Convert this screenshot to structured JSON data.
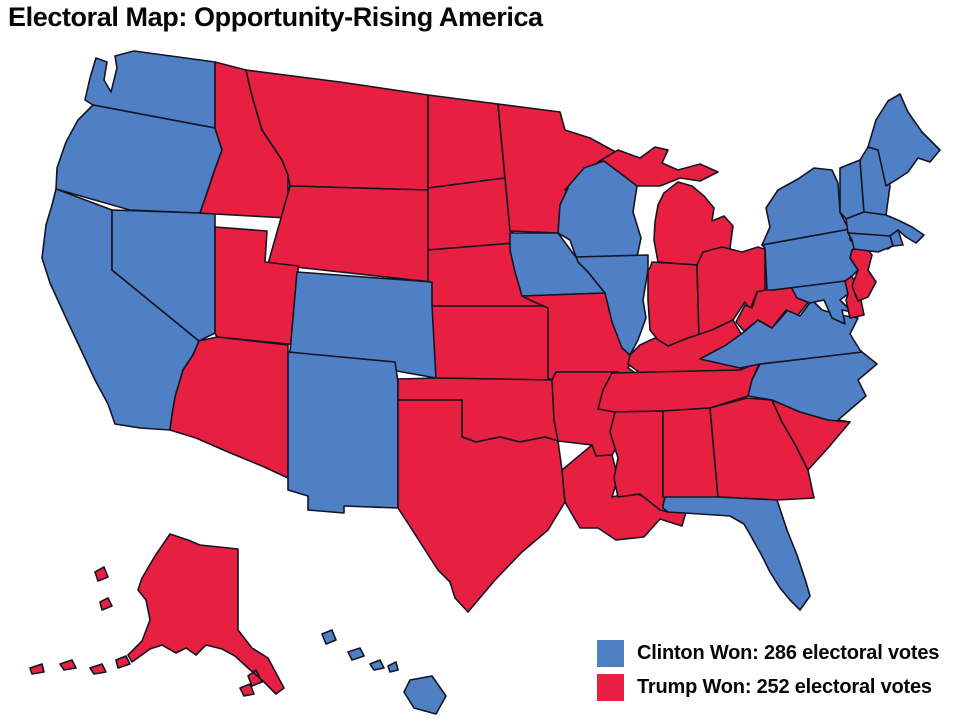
{
  "title": "Electoral Map: Opportunity-Rising America",
  "legend": [
    {
      "candidate": "Clinton",
      "label": "Clinton Won: 286 electoral votes",
      "electoral_votes": 286,
      "color": "#4f7fc4"
    },
    {
      "candidate": "Trump",
      "label": "Trump Won: 252 electoral votes",
      "electoral_votes": 252,
      "color": "#e71f40"
    }
  ],
  "colors": {
    "clinton": "#4f7fc4",
    "trump": "#e71f40",
    "outline": "#151423",
    "background": "#ffffff"
  },
  "chart_data": {
    "type": "choropleth",
    "region": "United States",
    "totals": {
      "clinton": 286,
      "trump": 252
    },
    "states": [
      {
        "abbr": "WA",
        "name": "Washington",
        "winner": "clinton"
      },
      {
        "abbr": "OR",
        "name": "Oregon",
        "winner": "clinton"
      },
      {
        "abbr": "CA",
        "name": "California",
        "winner": "clinton"
      },
      {
        "abbr": "NV",
        "name": "Nevada",
        "winner": "clinton"
      },
      {
        "abbr": "ID",
        "name": "Idaho",
        "winner": "trump"
      },
      {
        "abbr": "MT",
        "name": "Montana",
        "winner": "trump"
      },
      {
        "abbr": "WY",
        "name": "Wyoming",
        "winner": "trump"
      },
      {
        "abbr": "UT",
        "name": "Utah",
        "winner": "trump"
      },
      {
        "abbr": "CO",
        "name": "Colorado",
        "winner": "clinton"
      },
      {
        "abbr": "AZ",
        "name": "Arizona",
        "winner": "trump"
      },
      {
        "abbr": "NM",
        "name": "New Mexico",
        "winner": "clinton"
      },
      {
        "abbr": "ND",
        "name": "North Dakota",
        "winner": "trump"
      },
      {
        "abbr": "SD",
        "name": "South Dakota",
        "winner": "trump"
      },
      {
        "abbr": "NE",
        "name": "Nebraska",
        "winner": "trump"
      },
      {
        "abbr": "KS",
        "name": "Kansas",
        "winner": "trump"
      },
      {
        "abbr": "OK",
        "name": "Oklahoma",
        "winner": "trump"
      },
      {
        "abbr": "TX",
        "name": "Texas",
        "winner": "trump"
      },
      {
        "abbr": "MN",
        "name": "Minnesota",
        "winner": "trump"
      },
      {
        "abbr": "IA",
        "name": "Iowa",
        "winner": "clinton"
      },
      {
        "abbr": "MO",
        "name": "Missouri",
        "winner": "trump"
      },
      {
        "abbr": "AR",
        "name": "Arkansas",
        "winner": "trump"
      },
      {
        "abbr": "LA",
        "name": "Louisiana",
        "winner": "trump"
      },
      {
        "abbr": "WI",
        "name": "Wisconsin",
        "winner": "clinton"
      },
      {
        "abbr": "IL",
        "name": "Illinois",
        "winner": "clinton"
      },
      {
        "abbr": "MI",
        "name": "Michigan",
        "winner": "trump"
      },
      {
        "abbr": "IN",
        "name": "Indiana",
        "winner": "trump"
      },
      {
        "abbr": "OH",
        "name": "Ohio",
        "winner": "trump"
      },
      {
        "abbr": "KY",
        "name": "Kentucky",
        "winner": "trump"
      },
      {
        "abbr": "TN",
        "name": "Tennessee",
        "winner": "trump"
      },
      {
        "abbr": "MS",
        "name": "Mississippi",
        "winner": "trump"
      },
      {
        "abbr": "AL",
        "name": "Alabama",
        "winner": "trump"
      },
      {
        "abbr": "GA",
        "name": "Georgia",
        "winner": "trump"
      },
      {
        "abbr": "SC",
        "name": "South Carolina",
        "winner": "trump"
      },
      {
        "abbr": "NC",
        "name": "North Carolina",
        "winner": "clinton"
      },
      {
        "abbr": "VA",
        "name": "Virginia",
        "winner": "clinton"
      },
      {
        "abbr": "WV",
        "name": "West Virginia",
        "winner": "trump"
      },
      {
        "abbr": "MD",
        "name": "Maryland",
        "winner": "clinton"
      },
      {
        "abbr": "DE",
        "name": "Delaware",
        "winner": "trump"
      },
      {
        "abbr": "NJ",
        "name": "New Jersey",
        "winner": "trump"
      },
      {
        "abbr": "PA",
        "name": "Pennsylvania",
        "winner": "clinton"
      },
      {
        "abbr": "NY",
        "name": "New York",
        "winner": "clinton"
      },
      {
        "abbr": "VT",
        "name": "Vermont",
        "winner": "clinton"
      },
      {
        "abbr": "NH",
        "name": "New Hampshire",
        "winner": "clinton"
      },
      {
        "abbr": "MA",
        "name": "Massachusetts",
        "winner": "clinton"
      },
      {
        "abbr": "RI",
        "name": "Rhode Island",
        "winner": "clinton"
      },
      {
        "abbr": "CT",
        "name": "Connecticut",
        "winner": "clinton"
      },
      {
        "abbr": "ME",
        "name": "Maine",
        "winner": "clinton"
      },
      {
        "abbr": "FL",
        "name": "Florida",
        "winner": "clinton"
      },
      {
        "abbr": "AK",
        "name": "Alaska",
        "winner": "trump"
      },
      {
        "abbr": "HI",
        "name": "Hawaii",
        "winner": "clinton"
      }
    ]
  }
}
